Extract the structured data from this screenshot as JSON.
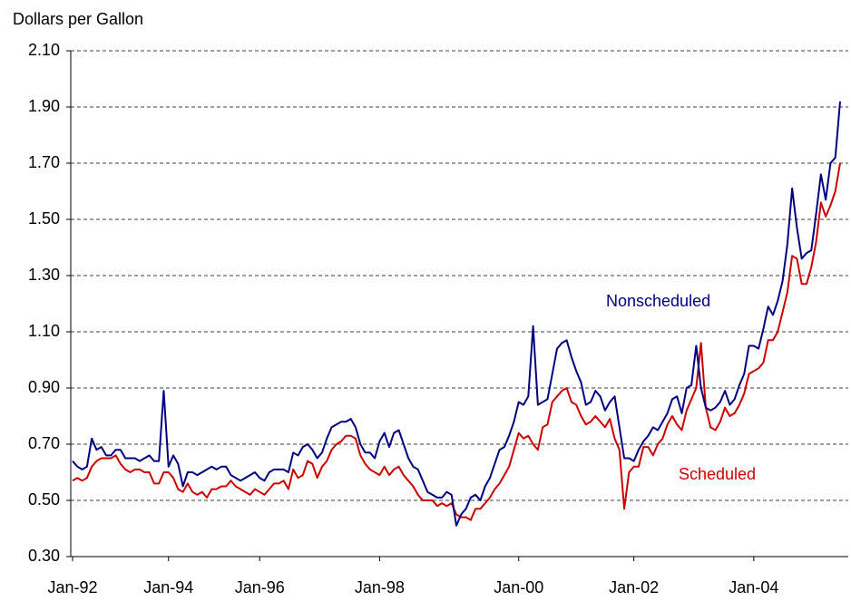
{
  "chart_data": {
    "type": "line",
    "y_label": "Dollars per Gallon",
    "categories": [
      "Jan-92",
      null,
      null,
      null,
      null,
      null,
      null,
      null,
      null,
      null,
      null,
      null,
      null,
      null,
      null,
      null,
      null,
      null,
      null,
      null,
      "Jan-94",
      null,
      null,
      null,
      null,
      null,
      null,
      null,
      null,
      null,
      null,
      null,
      null,
      null,
      null,
      null,
      null,
      null,
      null,
      "Jan-96",
      null,
      null,
      null,
      null,
      null,
      null,
      null,
      null,
      null,
      null,
      null,
      null,
      null,
      null,
      null,
      null,
      null,
      null,
      null,
      null,
      null,
      null,
      null,
      null,
      "Jan-98",
      null,
      null,
      null,
      null,
      null,
      null,
      null,
      null,
      null,
      null,
      null,
      null,
      null,
      null,
      null,
      null,
      null,
      null,
      null,
      null,
      null,
      null,
      null,
      null,
      null,
      null,
      null,
      null,
      "Jan-00",
      null,
      null,
      null,
      null,
      null,
      null,
      null,
      null,
      null,
      null,
      null,
      null,
      null,
      null,
      null,
      null,
      null,
      null,
      null,
      null,
      null,
      null,
      null,
      "Jan-02",
      null,
      null,
      null,
      null,
      null,
      null,
      null,
      null,
      null,
      null,
      null,
      null,
      null,
      null,
      null,
      null,
      null,
      null,
      null,
      null,
      null,
      null,
      null,
      null,
      "Jan-04",
      null,
      null,
      null,
      null,
      null,
      null,
      null,
      null,
      null,
      null,
      null,
      null,
      null,
      null,
      null,
      null,
      null,
      null
    ],
    "series": [
      {
        "name": "Nonscheduled",
        "color": "#000080",
        "values": [
          0.64,
          0.62,
          0.61,
          0.62,
          0.72,
          0.68,
          0.69,
          0.66,
          0.66,
          0.68,
          0.68,
          0.65,
          0.65,
          0.65,
          0.64,
          0.65,
          0.66,
          0.64,
          0.64,
          0.89,
          0.62,
          0.66,
          0.63,
          0.55,
          0.6,
          0.6,
          0.59,
          0.6,
          0.61,
          0.62,
          0.61,
          0.62,
          0.62,
          0.59,
          0.58,
          0.57,
          0.58,
          0.59,
          0.6,
          0.58,
          0.57,
          0.6,
          0.61,
          0.61,
          0.61,
          0.6,
          0.67,
          0.66,
          0.69,
          0.7,
          0.68,
          0.65,
          0.67,
          0.72,
          0.76,
          0.77,
          0.78,
          0.78,
          0.79,
          0.76,
          0.7,
          0.67,
          0.67,
          0.65,
          0.71,
          0.74,
          0.69,
          0.74,
          0.75,
          0.7,
          0.65,
          0.62,
          0.61,
          0.57,
          0.53,
          0.52,
          0.51,
          0.51,
          0.53,
          0.52,
          0.41,
          0.45,
          0.47,
          0.51,
          0.52,
          0.5,
          0.55,
          0.58,
          0.63,
          0.68,
          0.69,
          0.73,
          0.78,
          0.85,
          0.84,
          0.87,
          1.12,
          0.84,
          0.85,
          0.86,
          0.95,
          1.04,
          1.06,
          1.07,
          1.01,
          0.96,
          0.92,
          0.84,
          0.85,
          0.89,
          0.87,
          0.82,
          0.85,
          0.87,
          0.76,
          0.65,
          0.65,
          0.64,
          0.68,
          0.71,
          0.73,
          0.76,
          0.75,
          0.78,
          0.81,
          0.86,
          0.87,
          0.81,
          0.9,
          0.91,
          1.05,
          0.9,
          0.83,
          0.82,
          0.83,
          0.85,
          0.89,
          0.84,
          0.86,
          0.91,
          0.95,
          1.05,
          1.05,
          1.04,
          1.11,
          1.19,
          1.16,
          1.21,
          1.28,
          1.41,
          1.61,
          1.47,
          1.36,
          1.38,
          1.39,
          1.52,
          1.66,
          1.57,
          1.7,
          1.72,
          1.92
        ]
      },
      {
        "name": "Scheduled",
        "color": "#cc0000",
        "values": [
          0.57,
          0.58,
          0.57,
          0.58,
          0.62,
          0.64,
          0.65,
          0.65,
          0.65,
          0.66,
          0.63,
          0.61,
          0.6,
          0.61,
          0.61,
          0.6,
          0.6,
          0.56,
          0.56,
          0.6,
          0.6,
          0.58,
          0.54,
          0.53,
          0.56,
          0.53,
          0.52,
          0.53,
          0.51,
          0.54,
          0.54,
          0.55,
          0.55,
          0.57,
          0.55,
          0.54,
          0.53,
          0.52,
          0.54,
          0.53,
          0.52,
          0.54,
          0.56,
          0.56,
          0.57,
          0.54,
          0.61,
          0.58,
          0.59,
          0.64,
          0.63,
          0.58,
          0.62,
          0.64,
          0.68,
          0.7,
          0.71,
          0.73,
          0.73,
          0.72,
          0.66,
          0.63,
          0.61,
          0.6,
          0.59,
          0.62,
          0.59,
          0.61,
          0.62,
          0.59,
          0.57,
          0.55,
          0.52,
          0.5,
          0.5,
          0.5,
          0.48,
          0.49,
          0.48,
          0.49,
          0.45,
          0.44,
          0.44,
          0.43,
          0.47,
          0.47,
          0.49,
          0.51,
          0.54,
          0.56,
          0.59,
          0.62,
          0.68,
          0.74,
          0.72,
          0.73,
          0.7,
          0.68,
          0.76,
          0.77,
          0.85,
          0.87,
          0.89,
          0.9,
          0.85,
          0.84,
          0.8,
          0.77,
          0.78,
          0.8,
          0.78,
          0.76,
          0.79,
          0.72,
          0.68,
          0.47,
          0.6,
          0.62,
          0.62,
          0.69,
          0.69,
          0.66,
          0.7,
          0.72,
          0.77,
          0.8,
          0.77,
          0.75,
          0.82,
          0.86,
          0.9,
          1.06,
          0.83,
          0.76,
          0.75,
          0.78,
          0.83,
          0.8,
          0.81,
          0.84,
          0.88,
          0.95,
          0.96,
          0.97,
          0.99,
          1.07,
          1.07,
          1.1,
          1.17,
          1.24,
          1.37,
          1.36,
          1.27,
          1.27,
          1.33,
          1.42,
          1.56,
          1.51,
          1.55,
          1.6,
          1.7
        ]
      }
    ],
    "ylim": [
      0.3,
      2.1
    ],
    "yticks": [
      {
        "value": 0.3,
        "label": "0.30"
      },
      {
        "value": 0.5,
        "label": "0.50"
      },
      {
        "value": 0.7,
        "label": "0.70"
      },
      {
        "value": 0.9,
        "label": "0.90"
      },
      {
        "value": 1.1,
        "label": "1.10"
      },
      {
        "value": 1.3,
        "label": "1.30"
      },
      {
        "value": 1.5,
        "label": "1.50"
      },
      {
        "value": 1.7,
        "label": "1.70"
      },
      {
        "value": 1.9,
        "label": "1.90"
      },
      {
        "value": 2.1,
        "label": "2.10"
      }
    ],
    "grid": true
  }
}
